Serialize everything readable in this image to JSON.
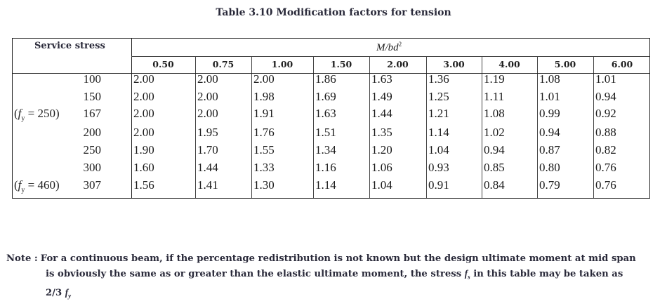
{
  "caption": "Table 3.10 Modification factors for tension",
  "table": {
    "row_header": "Service stress",
    "ratio_header": "M/bd²",
    "columns": [
      "0.50",
      "0.75",
      "1.00",
      "1.50",
      "2.00",
      "3.00",
      "4.00",
      "5.00",
      "6.00"
    ],
    "rows": [
      {
        "fy": "",
        "stress": "100",
        "values": [
          "2.00",
          "2.00",
          "2.00",
          "1.86",
          "1.63",
          "1.36",
          "1.19",
          "1.08",
          "1.01"
        ]
      },
      {
        "fy": "",
        "stress": "150",
        "values": [
          "2.00",
          "2.00",
          "1.98",
          "1.69",
          "1.49",
          "1.25",
          "1.11",
          "1.01",
          "0.94"
        ]
      },
      {
        "fy": "(fy = 250)",
        "stress": "167",
        "values": [
          "2.00",
          "2.00",
          "1.91",
          "1.63",
          "1.44",
          "1.21",
          "1.08",
          "0.99",
          "0.92"
        ]
      },
      {
        "fy": "",
        "stress": "200",
        "values": [
          "2.00",
          "1.95",
          "1.76",
          "1.51",
          "1.35",
          "1.14",
          "1.02",
          "0.94",
          "0.88"
        ]
      },
      {
        "fy": "",
        "stress": "250",
        "values": [
          "1.90",
          "1.70",
          "1.55",
          "1.34",
          "1.20",
          "1.04",
          "0.94",
          "0.87",
          "0.82"
        ]
      },
      {
        "fy": "",
        "stress": "300",
        "values": [
          "1.60",
          "1.44",
          "1.33",
          "1.16",
          "1.06",
          "0.93",
          "0.85",
          "0.80",
          "0.76"
        ]
      },
      {
        "fy": "(fy = 460)",
        "stress": "307",
        "values": [
          "1.56",
          "1.41",
          "1.30",
          "1.14",
          "1.04",
          "0.91",
          "0.84",
          "0.79",
          "0.76"
        ]
      }
    ]
  },
  "note": {
    "label": "Note :",
    "line1": "For a continuous beam, if the percentage redistribution is not known but the design ultimate moment at mid span",
    "line2a": "is obviously the same as or greater than the elastic ultimate moment, the stress",
    "line2_symbol": "fs",
    "line2b": "in this table may be taken as",
    "line3": "2/3 fy"
  }
}
